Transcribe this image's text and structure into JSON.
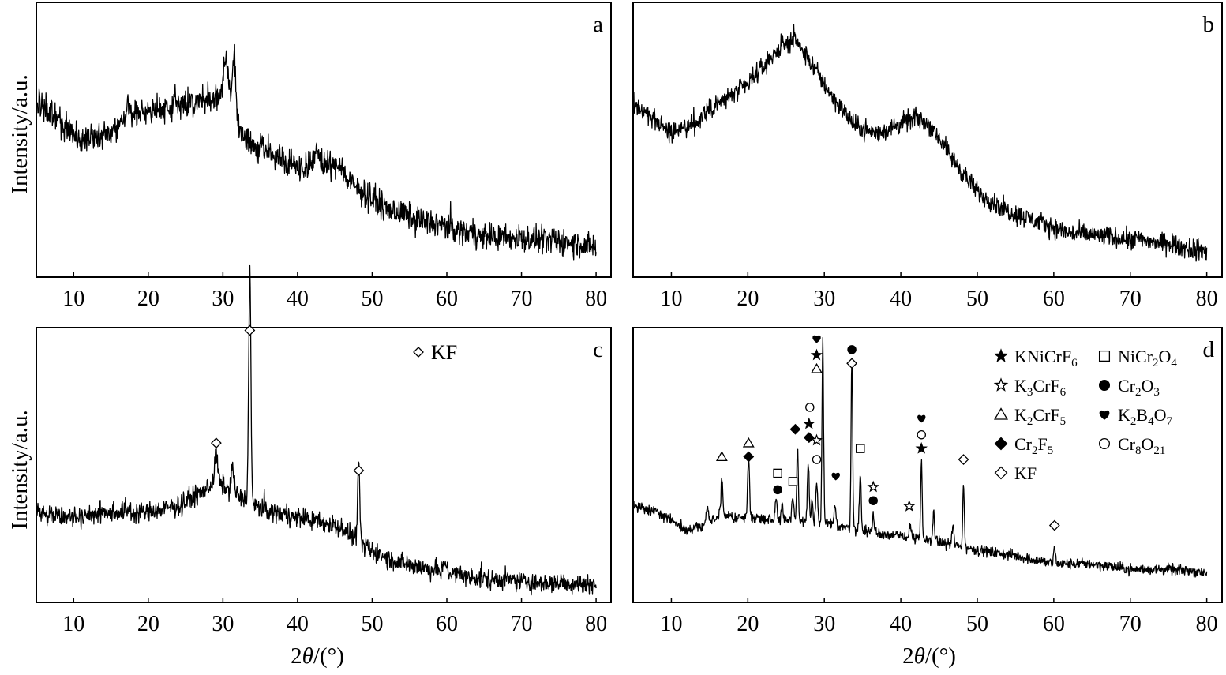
{
  "figure": {
    "ylabel": "Intensity/a.u.",
    "xlabel_parts": [
      "2",
      "θ",
      "/(°)"
    ]
  },
  "chart_data": [
    {
      "type": "line",
      "panel": "a",
      "xlim": [
        5,
        82
      ],
      "xticks": [
        10,
        20,
        30,
        40,
        50,
        60,
        70,
        80
      ],
      "ylim": [
        0,
        100
      ],
      "ylabel": "Intensity/a.u.",
      "xlabel": "",
      "grid": false,
      "series": [
        {
          "baseline": [
            [
              5,
              63
            ],
            [
              8,
              57
            ],
            [
              11,
              50
            ],
            [
              15,
              53
            ],
            [
              18,
              60
            ],
            [
              22,
              61
            ],
            [
              25,
              63
            ],
            [
              29,
              65
            ],
            [
              30.5,
              64
            ],
            [
              31.8,
              55
            ],
            [
              33,
              50
            ],
            [
              36,
              46
            ],
            [
              40,
              40
            ],
            [
              43,
              41
            ],
            [
              45,
              40
            ],
            [
              48,
              32
            ],
            [
              52,
              25
            ],
            [
              56,
              21
            ],
            [
              60,
              18
            ],
            [
              65,
              15
            ],
            [
              70,
              14
            ],
            [
              75,
              13
            ],
            [
              80,
              11
            ]
          ],
          "noise": 4,
          "peaks": [
            [
              30.2,
              10,
              0.25
            ],
            [
              30.6,
              11,
              0.25
            ],
            [
              31.5,
              24,
              0.25
            ],
            [
              17.3,
              4,
              0.2
            ],
            [
              23.6,
              4,
              0.2
            ],
            [
              42.6,
              5,
              0.3
            ],
            [
              45.8,
              4,
              0.3
            ]
          ]
        }
      ],
      "markers": [],
      "legend": []
    },
    {
      "type": "line",
      "panel": "b",
      "xlim": [
        5,
        82
      ],
      "xticks": [
        10,
        20,
        30,
        40,
        50,
        60,
        70,
        80
      ],
      "ylim": [
        0,
        100
      ],
      "ylabel": "",
      "xlabel": "",
      "grid": false,
      "series": [
        {
          "baseline": [
            [
              5,
              63
            ],
            [
              8,
              57
            ],
            [
              10,
              52
            ],
            [
              13,
              56
            ],
            [
              16,
              63
            ],
            [
              20,
              70
            ],
            [
              24,
              83
            ],
            [
              26,
              87
            ],
            [
              28,
              79
            ],
            [
              31,
              66
            ],
            [
              34,
              55
            ],
            [
              37,
              52
            ],
            [
              40,
              56
            ],
            [
              42,
              58
            ],
            [
              44,
              55
            ],
            [
              47,
              42
            ],
            [
              50,
              31
            ],
            [
              54,
              24
            ],
            [
              58,
              20
            ],
            [
              62,
              16
            ],
            [
              66,
              15
            ],
            [
              70,
              14
            ],
            [
              75,
              12
            ],
            [
              80,
              9
            ]
          ],
          "noise": 3,
          "peaks": []
        }
      ],
      "markers": [],
      "legend": []
    },
    {
      "type": "line",
      "panel": "c",
      "xlim": [
        5,
        82
      ],
      "xticks": [
        10,
        20,
        30,
        40,
        50,
        60,
        70,
        80
      ],
      "ylim": [
        0,
        100
      ],
      "ylabel": "Intensity/a.u.",
      "xlabel": "2θ/(°)",
      "grid": false,
      "series": [
        {
          "baseline": [
            [
              5,
              33
            ],
            [
              10,
              31
            ],
            [
              15,
              33
            ],
            [
              20,
              33
            ],
            [
              24,
              35
            ],
            [
              27,
              40
            ],
            [
              29,
              44
            ],
            [
              31,
              41
            ],
            [
              34,
              35
            ],
            [
              38,
              32
            ],
            [
              42,
              30
            ],
            [
              46,
              27
            ],
            [
              49,
              20
            ],
            [
              53,
              15
            ],
            [
              58,
              12
            ],
            [
              63,
              9
            ],
            [
              68,
              8
            ],
            [
              73,
              7
            ],
            [
              80,
              7
            ]
          ],
          "noise": 3,
          "peaks": [
            [
              29.1,
              10,
              0.2
            ],
            [
              31.3,
              8,
              0.2
            ],
            [
              33.6,
              84,
              0.15
            ],
            [
              48.2,
              27,
              0.15
            ],
            [
              59.8,
              4,
              0.2
            ]
          ]
        }
      ],
      "markers": [
        {
          "x": 29.1,
          "y": 58,
          "symbol": "diamond-open"
        },
        {
          "x": 33.6,
          "y": 99,
          "symbol": "diamond-open"
        },
        {
          "x": 48.2,
          "y": 48,
          "symbol": "diamond-open"
        }
      ],
      "legend": [
        {
          "symbol": "diamond-open",
          "label": "KF"
        }
      ]
    },
    {
      "type": "line",
      "panel": "d",
      "xlim": [
        5,
        82
      ],
      "xticks": [
        10,
        20,
        30,
        40,
        50,
        60,
        70,
        80
      ],
      "ylim": [
        0,
        100
      ],
      "ylabel": "",
      "xlabel": "2θ/(°)",
      "grid": false,
      "series": [
        {
          "baseline": [
            [
              5,
              35
            ],
            [
              8,
              33
            ],
            [
              10,
              30
            ],
            [
              12,
              26
            ],
            [
              14,
              28
            ],
            [
              16,
              31
            ],
            [
              20,
              31
            ],
            [
              25,
              30
            ],
            [
              30,
              29
            ],
            [
              35,
              26
            ],
            [
              40,
              24
            ],
            [
              45,
              22
            ],
            [
              50,
              19
            ],
            [
              55,
              17
            ],
            [
              60,
              14
            ],
            [
              65,
              14
            ],
            [
              70,
              12
            ],
            [
              75,
              12
            ],
            [
              80,
              11
            ]
          ],
          "noise": 1.6,
          "peaks": [
            [
              14.7,
              5,
              0.15
            ],
            [
              16.6,
              14,
              0.12
            ],
            [
              20.1,
              22,
              0.12
            ],
            [
              23.7,
              7,
              0.12
            ],
            [
              24.5,
              6,
              0.12
            ],
            [
              25.9,
              8,
              0.12
            ],
            [
              26.5,
              27,
              0.1
            ],
            [
              27.9,
              21,
              0.12
            ],
            [
              28.4,
              8,
              0.1
            ],
            [
              29.0,
              14,
              0.12
            ],
            [
              29.8,
              67,
              0.1
            ],
            [
              31.4,
              7,
              0.12
            ],
            [
              33.6,
              63,
              0.1
            ],
            [
              34.7,
              20,
              0.12
            ],
            [
              36.4,
              6,
              0.12
            ],
            [
              41.2,
              5,
              0.12
            ],
            [
              42.7,
              28,
              0.1
            ],
            [
              44.3,
              10,
              0.12
            ],
            [
              46.8,
              7,
              0.12
            ],
            [
              48.2,
              23,
              0.1
            ],
            [
              60.1,
              6,
              0.12
            ]
          ]
        }
      ],
      "markers": [
        {
          "x": 16.6,
          "y": 53,
          "symbol": "triangle-open"
        },
        {
          "x": 20.1,
          "y": 58,
          "symbol": "triangle-open"
        },
        {
          "x": 20.1,
          "y": 53,
          "symbol": "diamond-filled"
        },
        {
          "x": 23.9,
          "y": 47,
          "symbol": "square-open"
        },
        {
          "x": 23.9,
          "y": 41,
          "symbol": "circle-filled"
        },
        {
          "x": 25.9,
          "y": 44,
          "symbol": "square-open"
        },
        {
          "x": 26.2,
          "y": 63,
          "symbol": "diamond-filled"
        },
        {
          "x": 28.0,
          "y": 65,
          "symbol": "star-filled"
        },
        {
          "x": 28.0,
          "y": 60,
          "symbol": "diamond-filled"
        },
        {
          "x": 28.1,
          "y": 71,
          "symbol": "circle-open"
        },
        {
          "x": 29.0,
          "y": 59,
          "symbol": "star-open"
        },
        {
          "x": 29.0,
          "y": 52,
          "symbol": "circle-open"
        },
        {
          "x": 29.0,
          "y": 90,
          "symbol": "star-filled"
        },
        {
          "x": 29.0,
          "y": 85,
          "symbol": "triangle-open"
        },
        {
          "x": 29.0,
          "y": 96,
          "symbol": "heart-filled"
        },
        {
          "x": 31.5,
          "y": 46,
          "symbol": "heart-filled"
        },
        {
          "x": 33.6,
          "y": 92,
          "symbol": "circle-filled"
        },
        {
          "x": 33.6,
          "y": 87,
          "symbol": "diamond-open"
        },
        {
          "x": 34.7,
          "y": 56,
          "symbol": "square-open"
        },
        {
          "x": 36.4,
          "y": 42,
          "symbol": "star-open"
        },
        {
          "x": 36.4,
          "y": 37,
          "symbol": "circle-filled"
        },
        {
          "x": 41.1,
          "y": 35,
          "symbol": "star-open"
        },
        {
          "x": 42.7,
          "y": 67,
          "symbol": "heart-filled"
        },
        {
          "x": 42.7,
          "y": 61,
          "symbol": "circle-open"
        },
        {
          "x": 42.7,
          "y": 56,
          "symbol": "star-filled"
        },
        {
          "x": 48.2,
          "y": 52,
          "symbol": "diamond-open"
        },
        {
          "x": 60.1,
          "y": 28,
          "symbol": "diamond-open"
        }
      ],
      "legend": [
        {
          "symbol": "star-filled",
          "label": "KNiCrF",
          "sub": "6"
        },
        {
          "symbol": "star-open",
          "label": "K",
          "sub": "3",
          "rest": "CrF",
          "sub2": "6"
        },
        {
          "symbol": "triangle-open",
          "label": "K",
          "sub": "2",
          "rest": "CrF",
          "sub2": "5"
        },
        {
          "symbol": "diamond-filled",
          "label": "Cr",
          "sub": "2",
          "rest": "F",
          "sub2": "5"
        },
        {
          "symbol": "diamond-open",
          "label": "KF"
        },
        {
          "symbol": "square-open",
          "label": "NiCr",
          "sub": "2",
          "rest": "O",
          "sub2": "4"
        },
        {
          "symbol": "circle-filled",
          "label": "Cr",
          "sub": "2",
          "rest": "O",
          "sub2": "3"
        },
        {
          "symbol": "heart-filled",
          "label": "K",
          "sub": "2",
          "rest": "B",
          "sub2": "4",
          "rest2": "O",
          "sub3": "7"
        },
        {
          "symbol": "circle-open",
          "label": "Cr",
          "sub": "8",
          "rest": "O",
          "sub2": "21"
        }
      ]
    }
  ]
}
